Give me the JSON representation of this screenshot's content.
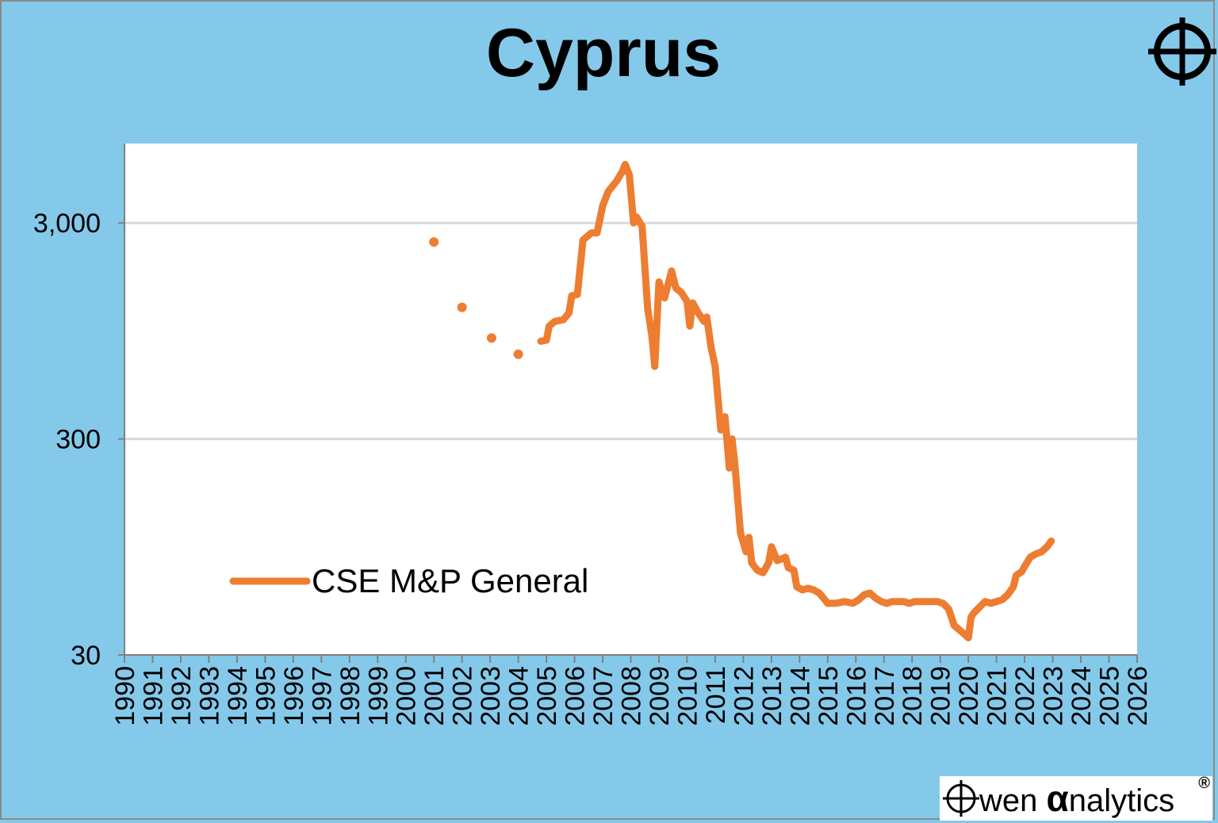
{
  "title": "Cyprus",
  "icons": {
    "corner": "crosshair-icon",
    "brand": "crosshair-o-icon"
  },
  "brand": {
    "prefix": "wen ",
    "alpha": "α",
    "suffix": "nalytics",
    "registered": "®"
  },
  "colors": {
    "background": "#84c9ea",
    "plot": "#ffffff",
    "series": "#ed7d31",
    "grid": "#d9d9d9",
    "axis": "#808080"
  },
  "chart_data": {
    "type": "line",
    "title": "Cyprus",
    "xlabel": "",
    "ylabel": "",
    "y_scale": "log",
    "ylim": [
      30,
      7000
    ],
    "xlim": [
      1990,
      2026
    ],
    "y_ticks": [
      30,
      300,
      3000
    ],
    "y_tick_labels": [
      "30",
      "300",
      "3,000"
    ],
    "x_tick_labels": [
      "1990",
      "1991",
      "1992",
      "1993",
      "1994",
      "1995",
      "1996",
      "1997",
      "1998",
      "1999",
      "2000",
      "2001",
      "2002",
      "2003",
      "2004",
      "2005",
      "2006",
      "2007",
      "2008",
      "2009",
      "2010",
      "2011",
      "2012",
      "2013",
      "2014",
      "2015",
      "2016",
      "2017",
      "2018",
      "2019",
      "2020",
      "2021",
      "2022",
      "2023",
      "2024",
      "2025",
      "2026"
    ],
    "grid": {
      "horizontal": true,
      "vertical": false
    },
    "legend": {
      "placement": "bottom-left",
      "entries": [
        "CSE M&P General"
      ]
    },
    "series": [
      {
        "name": "CSE M&P General",
        "markers_only": [
          {
            "x": 2001.0,
            "y": 2450
          },
          {
            "x": 2002.0,
            "y": 1220
          },
          {
            "x": 2003.05,
            "y": 880
          },
          {
            "x": 2004.0,
            "y": 740
          }
        ],
        "line": [
          [
            2004.8,
            850
          ],
          [
            2005.0,
            860
          ],
          [
            2005.1,
            1000
          ],
          [
            2005.3,
            1050
          ],
          [
            2005.6,
            1070
          ],
          [
            2005.8,
            1150
          ],
          [
            2005.9,
            1380
          ],
          [
            2006.1,
            1400
          ],
          [
            2006.3,
            2500
          ],
          [
            2006.6,
            2700
          ],
          [
            2006.8,
            2700
          ],
          [
            2007.0,
            3600
          ],
          [
            2007.2,
            4200
          ],
          [
            2007.5,
            4700
          ],
          [
            2007.7,
            5200
          ],
          [
            2007.8,
            5600
          ],
          [
            2007.95,
            5000
          ],
          [
            2008.1,
            3000
          ],
          [
            2008.2,
            3200
          ],
          [
            2008.4,
            2900
          ],
          [
            2008.6,
            1200
          ],
          [
            2008.75,
            900
          ],
          [
            2008.85,
            650
          ],
          [
            2009.0,
            1600
          ],
          [
            2009.2,
            1350
          ],
          [
            2009.45,
            1800
          ],
          [
            2009.6,
            1500
          ],
          [
            2009.8,
            1430
          ],
          [
            2010.0,
            1300
          ],
          [
            2010.1,
            1000
          ],
          [
            2010.2,
            1280
          ],
          [
            2010.4,
            1150
          ],
          [
            2010.6,
            1050
          ],
          [
            2010.7,
            1100
          ],
          [
            2010.85,
            800
          ],
          [
            2011.0,
            650
          ],
          [
            2011.2,
            330
          ],
          [
            2011.35,
            380
          ],
          [
            2011.5,
            220
          ],
          [
            2011.6,
            300
          ],
          [
            2011.7,
            230
          ],
          [
            2011.9,
            110
          ],
          [
            2012.1,
            90
          ],
          [
            2012.2,
            105
          ],
          [
            2012.3,
            80
          ],
          [
            2012.5,
            74
          ],
          [
            2012.7,
            72
          ],
          [
            2012.9,
            80
          ],
          [
            2013.0,
            95
          ],
          [
            2013.2,
            82
          ],
          [
            2013.5,
            85
          ],
          [
            2013.6,
            76
          ],
          [
            2013.8,
            74
          ],
          [
            2013.9,
            62
          ],
          [
            2014.1,
            60
          ],
          [
            2014.3,
            61
          ],
          [
            2014.5,
            60
          ],
          [
            2014.7,
            58
          ],
          [
            2014.9,
            54
          ],
          [
            2015.0,
            52
          ],
          [
            2015.3,
            52
          ],
          [
            2015.6,
            53
          ],
          [
            2015.9,
            52
          ],
          [
            2016.1,
            54
          ],
          [
            2016.3,
            57
          ],
          [
            2016.5,
            58
          ],
          [
            2016.7,
            55
          ],
          [
            2016.9,
            53
          ],
          [
            2017.1,
            52
          ],
          [
            2017.3,
            53
          ],
          [
            2017.5,
            53
          ],
          [
            2017.7,
            53
          ],
          [
            2017.9,
            52
          ],
          [
            2018.1,
            53
          ],
          [
            2018.3,
            53
          ],
          [
            2018.5,
            53
          ],
          [
            2018.7,
            53
          ],
          [
            2018.9,
            53
          ],
          [
            2019.1,
            52
          ],
          [
            2019.3,
            49
          ],
          [
            2019.5,
            41
          ],
          [
            2019.6,
            40
          ],
          [
            2019.8,
            38
          ],
          [
            2020.0,
            36
          ],
          [
            2020.1,
            45
          ],
          [
            2020.2,
            47
          ],
          [
            2020.4,
            50
          ],
          [
            2020.6,
            53
          ],
          [
            2020.8,
            52
          ],
          [
            2021.0,
            53
          ],
          [
            2021.2,
            54
          ],
          [
            2021.4,
            57
          ],
          [
            2021.6,
            62
          ],
          [
            2021.7,
            70
          ],
          [
            2021.9,
            73
          ],
          [
            2022.0,
            77
          ],
          [
            2022.2,
            85
          ],
          [
            2022.4,
            88
          ],
          [
            2022.6,
            90
          ],
          [
            2022.8,
            95
          ],
          [
            2022.95,
            101
          ]
        ]
      }
    ]
  }
}
